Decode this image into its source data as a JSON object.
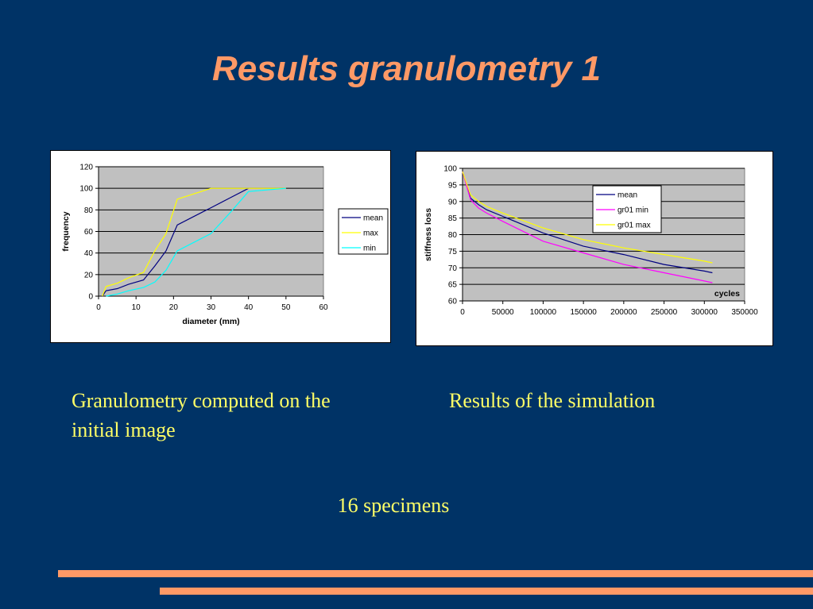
{
  "slide": {
    "title": "Results granulometry 1",
    "caption_left": "Granulometry computed on the initial image",
    "caption_right": "Results of the simulation",
    "caption_bottom": "16 specimens",
    "title_color": "#ff9966",
    "caption_color": "#ffff66",
    "background": "#003366"
  },
  "chart_data": [
    {
      "type": "line",
      "xlabel": "diameter (mm)",
      "ylabel": "frequency",
      "xlim": [
        0,
        60
      ],
      "ylim": [
        0,
        120
      ],
      "xticks": [
        "0",
        "10",
        "20",
        "30",
        "40",
        "50",
        "60"
      ],
      "yticks": [
        "0",
        "20",
        "40",
        "60",
        "80",
        "100",
        "120"
      ],
      "grid": true,
      "legend": "right",
      "plot_background": "#c0c0c0",
      "series": [
        {
          "name": "mean",
          "color": "#000080",
          "x": [
            1,
            2,
            5,
            8,
            12,
            15,
            18,
            21,
            30,
            35,
            40
          ],
          "y": [
            0,
            5,
            7,
            11,
            15,
            28,
            42,
            66,
            82,
            91,
            100
          ]
        },
        {
          "name": "max",
          "color": "#ffff00",
          "x": [
            1,
            2,
            5,
            8,
            12,
            15,
            18,
            21,
            30,
            40,
            50
          ],
          "y": [
            0,
            9,
            12,
            17,
            22,
            42,
            58,
            90,
            100,
            100,
            100
          ]
        },
        {
          "name": "min",
          "color": "#00ffff",
          "x": [
            2,
            5,
            8,
            12,
            15,
            18,
            21,
            30,
            35,
            40,
            50
          ],
          "y": [
            0,
            2,
            5,
            8,
            13,
            24,
            42,
            58,
            77,
            97,
            100
          ]
        }
      ]
    },
    {
      "type": "line",
      "xlabel": "cycles",
      "ylabel": "stiffness loss",
      "xlim": [
        0,
        350000
      ],
      "ylim": [
        60,
        100
      ],
      "xticks": [
        "0",
        "50000",
        "100000",
        "150000",
        "200000",
        "250000",
        "300000",
        "350000"
      ],
      "yticks": [
        "60",
        "65",
        "70",
        "75",
        "80",
        "85",
        "90",
        "95",
        "100"
      ],
      "grid": true,
      "legend": "inside-top",
      "plot_background": "#c0c0c0",
      "series": [
        {
          "name": "mean",
          "color": "#000080",
          "x": [
            0,
            10000,
            20000,
            30000,
            50000,
            100000,
            150000,
            200000,
            250000,
            300000,
            310000
          ],
          "y": [
            99,
            91,
            89,
            87.5,
            85.5,
            80.5,
            76.5,
            74,
            71,
            69,
            68.5
          ]
        },
        {
          "name": "gr01 min",
          "color": "#ff00ff",
          "x": [
            0,
            10000,
            20000,
            30000,
            50000,
            100000,
            150000,
            200000,
            250000,
            300000,
            310000
          ],
          "y": [
            99,
            90.5,
            88,
            86.5,
            84,
            78,
            74.5,
            71,
            68.5,
            66,
            65.5
          ]
        },
        {
          "name": "gr01 max",
          "color": "#ffff00",
          "x": [
            0,
            10000,
            20000,
            30000,
            50000,
            100000,
            150000,
            200000,
            250000,
            300000,
            310000
          ],
          "y": [
            99,
            92,
            90,
            88.5,
            86.5,
            82,
            78.5,
            76,
            74,
            72,
            71.5
          ]
        }
      ]
    }
  ]
}
